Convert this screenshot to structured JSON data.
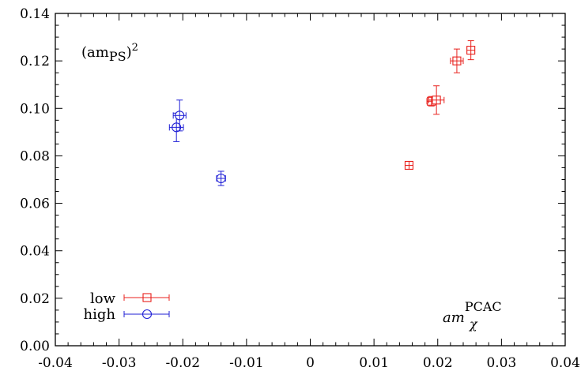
{
  "chart_data": {
    "type": "scatter",
    "title": "",
    "xlabel": {
      "base": "am",
      "sub": "χ",
      "sup": "PCAC"
    },
    "ylabel": {
      "base": "(am",
      "sub": "PS",
      "tail": ")",
      "sup": "2"
    },
    "xlim": [
      -0.04,
      0.04
    ],
    "ylim": [
      0.0,
      0.14
    ],
    "x_ticks": [
      "-0.04",
      "-0.03",
      "-0.02",
      "-0.01",
      "0",
      "0.01",
      "0.02",
      "0.03",
      "0.04"
    ],
    "y_ticks": [
      "0.00",
      "0.02",
      "0.04",
      "0.06",
      "0.08",
      "0.10",
      "0.12",
      "0.14"
    ],
    "grid": false,
    "legend_position": "bottom-left",
    "series": [
      {
        "name": "low",
        "color": "#e8201c",
        "marker": "square",
        "points": [
          {
            "x": 0.0155,
            "y": 0.076,
            "xerr": 0.0006,
            "yerr": 0.0015
          },
          {
            "x": 0.019,
            "y": 0.103,
            "xerr": 0.0007,
            "yerr": 0.002
          },
          {
            "x": 0.0198,
            "y": 0.1035,
            "xerr": 0.0012,
            "yerr": 0.006
          },
          {
            "x": 0.023,
            "y": 0.12,
            "xerr": 0.001,
            "yerr": 0.005
          },
          {
            "x": 0.0252,
            "y": 0.1245,
            "xerr": 0.0006,
            "yerr": 0.004
          }
        ]
      },
      {
        "name": "high",
        "color": "#1f1fd6",
        "marker": "circle",
        "points": [
          {
            "x": -0.021,
            "y": 0.092,
            "xerr": 0.0011,
            "yerr": 0.006
          },
          {
            "x": -0.0205,
            "y": 0.097,
            "xerr": 0.001,
            "yerr": 0.0065
          },
          {
            "x": -0.014,
            "y": 0.0705,
            "xerr": 0.0007,
            "yerr": 0.003
          }
        ]
      }
    ]
  }
}
